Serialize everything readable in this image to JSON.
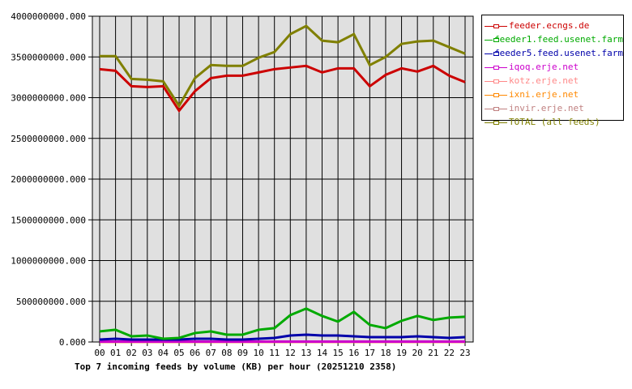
{
  "chart_data": {
    "type": "line",
    "title": "Top 7 incoming feeds by volume (KB) per hour (20251210 2358)",
    "xlabel": "",
    "ylabel": "",
    "ylim": [
      0,
      4000000000
    ],
    "grid": true,
    "legend_position": "right",
    "y_ticks": [
      "0.000",
      "500000000.000",
      "1000000000.000",
      "1500000000.000",
      "2000000000.000",
      "2500000000.000",
      "3000000000.000",
      "3500000000.000",
      "4000000000.000"
    ],
    "categories": [
      "00",
      "01",
      "02",
      "03",
      "04",
      "05",
      "06",
      "07",
      "08",
      "09",
      "10",
      "11",
      "12",
      "13",
      "14",
      "15",
      "16",
      "17",
      "18",
      "19",
      "20",
      "21",
      "22",
      "23"
    ],
    "series": [
      {
        "name": "feeder.ecngs.de",
        "color": "#cc0000",
        "values": [
          3350000000,
          3330000000,
          3140000000,
          3130000000,
          3140000000,
          2840000000,
          3080000000,
          3240000000,
          3270000000,
          3270000000,
          3310000000,
          3350000000,
          3370000000,
          3390000000,
          3310000000,
          3360000000,
          3360000000,
          3140000000,
          3280000000,
          3360000000,
          3320000000,
          3390000000,
          3270000000,
          3190000000
        ]
      },
      {
        "name": "feeder1.feed.usenet.farm",
        "color": "#00aa00",
        "values": [
          130000000,
          150000000,
          70000000,
          80000000,
          40000000,
          50000000,
          110000000,
          130000000,
          90000000,
          90000000,
          150000000,
          170000000,
          330000000,
          410000000,
          320000000,
          250000000,
          370000000,
          210000000,
          170000000,
          260000000,
          320000000,
          270000000,
          300000000,
          310000000
        ]
      },
      {
        "name": "feeder5.feed.usenet.farm",
        "color": "#0000aa",
        "values": [
          30000000,
          40000000,
          30000000,
          30000000,
          30000000,
          30000000,
          40000000,
          40000000,
          30000000,
          30000000,
          40000000,
          50000000,
          80000000,
          90000000,
          80000000,
          80000000,
          70000000,
          60000000,
          60000000,
          60000000,
          70000000,
          60000000,
          50000000,
          60000000
        ]
      },
      {
        "name": "iqoq.erje.net",
        "color": "#cc00cc",
        "values": [
          5000000,
          5000000,
          5000000,
          5000000,
          5000000,
          5000000,
          5000000,
          5000000,
          5000000,
          5000000,
          5000000,
          5000000,
          5000000,
          5000000,
          5000000,
          5000000,
          5000000,
          5000000,
          5000000,
          5000000,
          5000000,
          5000000,
          5000000,
          5000000
        ]
      },
      {
        "name": "kotz.erje.net",
        "color": "#ff8888",
        "values": [
          3000000,
          3000000,
          3000000,
          3000000,
          3000000,
          3000000,
          3000000,
          3000000,
          3000000,
          3000000,
          3000000,
          3000000,
          3000000,
          3000000,
          3000000,
          3000000,
          3000000,
          3000000,
          3000000,
          3000000,
          3000000,
          3000000,
          3000000,
          3000000
        ]
      },
      {
        "name": "ixni.erje.net",
        "color": "#ff8800",
        "values": [
          2000000,
          2000000,
          2000000,
          2000000,
          2000000,
          2000000,
          2000000,
          2000000,
          2000000,
          2000000,
          2000000,
          2000000,
          2000000,
          2000000,
          2000000,
          2000000,
          2000000,
          2000000,
          2000000,
          2000000,
          2000000,
          2000000,
          2000000,
          2000000
        ]
      },
      {
        "name": "invir.erje.net",
        "color": "#c08080",
        "values": [
          1000000,
          1000000,
          1000000,
          1000000,
          1000000,
          1000000,
          1000000,
          1000000,
          1000000,
          1000000,
          1000000,
          1000000,
          1000000,
          1000000,
          1000000,
          1000000,
          1000000,
          1000000,
          1000000,
          1000000,
          1000000,
          1000000,
          1000000,
          1000000
        ]
      },
      {
        "name": "TOTAL (all feeds)",
        "color": "#808000",
        "values": [
          3510000000,
          3510000000,
          3230000000,
          3220000000,
          3200000000,
          2900000000,
          3240000000,
          3400000000,
          3390000000,
          3390000000,
          3490000000,
          3560000000,
          3780000000,
          3880000000,
          3700000000,
          3680000000,
          3780000000,
          3400000000,
          3500000000,
          3660000000,
          3690000000,
          3700000000,
          3620000000,
          3540000000
        ]
      }
    ]
  },
  "colors": {
    "plot_background": "#e0e0e0",
    "grid": "#000000"
  }
}
